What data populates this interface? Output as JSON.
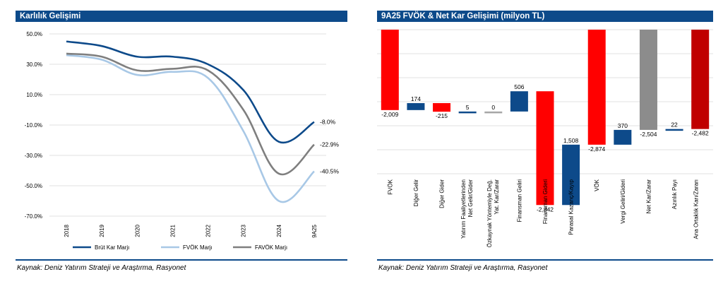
{
  "left": {
    "title": "Karlılık Gelişimi",
    "source": "Kaynak: Deniz Yatırım Strateji ve Araştırma, Rasyonet",
    "chart_data": {
      "type": "line",
      "title": "Karlılık Gelişimi",
      "categories": [
        "2018",
        "2019",
        "2020",
        "2021",
        "2022",
        "2023",
        "2024",
        "9A25"
      ],
      "ylim": [
        -70,
        50
      ],
      "yticks": [
        50,
        30,
        10,
        -10,
        -30,
        -50,
        -70
      ],
      "ytick_labels": [
        "50.0%",
        "30.0%",
        "10.0%",
        "-10.0%",
        "-30.0%",
        "-50.0%",
        "-70.0%"
      ],
      "grid": true,
      "legend_position": "bottom",
      "series": [
        {
          "name": "Brüt Kar Marjı",
          "color": "#0d4a8a",
          "values": [
            45,
            42,
            35,
            35,
            30,
            13,
            -21,
            -8
          ],
          "end_label": "-8.0%"
        },
        {
          "name": "FVÖK Marjı",
          "color": "#a8c8e6",
          "values": [
            36,
            33,
            23,
            25,
            21,
            -14,
            -60,
            -40.5
          ],
          "end_label": "-40.5%"
        },
        {
          "name": "FAVÖK Marjı",
          "color": "#7f7f7f",
          "values": [
            37,
            35,
            26,
            27,
            26,
            0,
            -42,
            -22.9
          ],
          "end_label": "-22.9%"
        }
      ]
    }
  },
  "right": {
    "title": "9A25 FVÖK & Net Kar Gelişimi (milyon TL)",
    "source": "Kaynak: Deniz Yatırım Strateji ve Araştırma, Rasyonet",
    "chart_data": {
      "type": "bar",
      "subtype": "waterfall",
      "title": "9A25 FVÖK & Net Kar Gelişimi (milyon TL)",
      "ylim": [
        -3600,
        0
      ],
      "grid": true,
      "bars": [
        {
          "category": "FVÖK",
          "value": -2009,
          "label": "-2,009",
          "kind": "total",
          "color": "#ff0000"
        },
        {
          "category": "Diğer Gelir",
          "value": 174,
          "label": "174",
          "kind": "delta",
          "color": "#0d4a8a"
        },
        {
          "category": "Diğer Gider",
          "value": -215,
          "label": "-215",
          "kind": "delta",
          "color": "#ff0000"
        },
        {
          "category": "Yatırım Faaliyetlerinden Net Gelir/Gider",
          "value": 5,
          "label": "5",
          "kind": "delta",
          "color": "#0d4a8a"
        },
        {
          "category": "Özkaynak Yöntemiyle Değ. Yat. Kar/Zarar",
          "value": 0,
          "label": "0",
          "kind": "delta",
          "color": "#a6a6a6"
        },
        {
          "category": "Finansman Geliri",
          "value": 506,
          "label": "506",
          "kind": "delta",
          "color": "#0d4a8a"
        },
        {
          "category": "Finansman Gideri",
          "value": -2842,
          "label": "-2,842",
          "kind": "delta",
          "color": "#ff0000"
        },
        {
          "category": "Parasal Kazanç/Kayıp",
          "value": 1508,
          "label": "1,508",
          "kind": "delta",
          "color": "#0d4a8a"
        },
        {
          "category": "VÖK",
          "value": -2874,
          "label": "-2,874",
          "kind": "total",
          "color": "#ff0000"
        },
        {
          "category": "Vergi Geliri/Gideri",
          "value": 370,
          "label": "370",
          "kind": "delta",
          "color": "#0d4a8a"
        },
        {
          "category": "Net Kar/Zarar",
          "value": -2504,
          "label": "-2,504",
          "kind": "total",
          "color": "#8c8c8c"
        },
        {
          "category": "Azınlık Payı",
          "value": 22,
          "label": "22",
          "kind": "delta",
          "color": "#0d4a8a"
        },
        {
          "category": "Ana Ortaklık Karı/Zararı",
          "value": -2482,
          "label": "-2,482",
          "kind": "total",
          "color": "#c00000"
        }
      ]
    }
  }
}
